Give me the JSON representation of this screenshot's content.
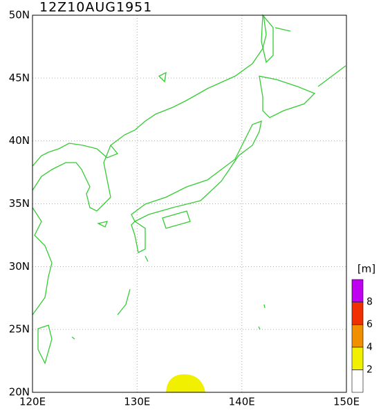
{
  "title": "12Z10AUG1951",
  "map": {
    "lat_labels": [
      "50N",
      "45N",
      "40N",
      "35N",
      "30N",
      "25N",
      "20N"
    ],
    "lon_labels": [
      "120E",
      "130E",
      "140E",
      "150E"
    ]
  },
  "legend": {
    "unit": "[m]",
    "levels": [
      2,
      4,
      6,
      8
    ],
    "colors": [
      "#ffffff",
      "#f0f000",
      "#f09000",
      "#f03000",
      "#c000f0"
    ]
  }
}
